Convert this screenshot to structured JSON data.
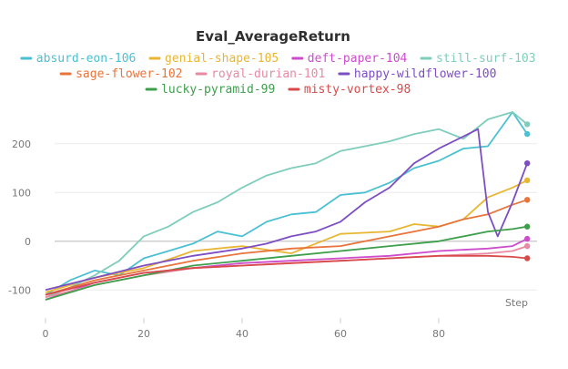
{
  "chart_data": {
    "type": "line",
    "title": "Eval_AverageReturn",
    "xlabel": "Step",
    "ylabel": "",
    "xlim": [
      0,
      100
    ],
    "ylim": [
      -150,
      280
    ],
    "xticks": [
      0,
      20,
      40,
      60,
      80
    ],
    "yticks": [
      -100,
      0,
      100,
      200
    ],
    "grid": "horizontal",
    "legend_position": "top",
    "series": [
      {
        "name": "absurd-eon-106",
        "color": "#4bc0d3",
        "values": [
          [
            0,
            -110
          ],
          [
            5,
            -80
          ],
          [
            10,
            -60
          ],
          [
            15,
            -70
          ],
          [
            20,
            -35
          ],
          [
            25,
            -20
          ],
          [
            30,
            -5
          ],
          [
            35,
            20
          ],
          [
            40,
            10
          ],
          [
            45,
            40
          ],
          [
            50,
            55
          ],
          [
            55,
            60
          ],
          [
            60,
            95
          ],
          [
            65,
            100
          ],
          [
            70,
            120
          ],
          [
            75,
            150
          ],
          [
            80,
            165
          ],
          [
            85,
            190
          ],
          [
            90,
            195
          ],
          [
            95,
            265
          ],
          [
            98,
            220
          ]
        ]
      },
      {
        "name": "genial-shape-105",
        "color": "#e8b632",
        "values": [
          [
            0,
            -105
          ],
          [
            10,
            -75
          ],
          [
            20,
            -55
          ],
          [
            30,
            -20
          ],
          [
            40,
            -10
          ],
          [
            50,
            -25
          ],
          [
            60,
            15
          ],
          [
            70,
            20
          ],
          [
            75,
            35
          ],
          [
            80,
            30
          ],
          [
            85,
            45
          ],
          [
            90,
            90
          ],
          [
            95,
            110
          ],
          [
            98,
            125
          ]
        ]
      },
      {
        "name": "deft-paper-104",
        "color": "#cc4ccc",
        "values": [
          [
            0,
            -120
          ],
          [
            10,
            -85
          ],
          [
            20,
            -65
          ],
          [
            30,
            -55
          ],
          [
            40,
            -45
          ],
          [
            50,
            -40
          ],
          [
            60,
            -35
          ],
          [
            70,
            -30
          ],
          [
            80,
            -20
          ],
          [
            90,
            -15
          ],
          [
            95,
            -10
          ],
          [
            98,
            5
          ]
        ]
      },
      {
        "name": "still-surf-103",
        "color": "#7fcdbb",
        "values": [
          [
            0,
            -115
          ],
          [
            5,
            -95
          ],
          [
            10,
            -70
          ],
          [
            15,
            -40
          ],
          [
            20,
            10
          ],
          [
            25,
            30
          ],
          [
            30,
            60
          ],
          [
            35,
            80
          ],
          [
            40,
            110
          ],
          [
            45,
            135
          ],
          [
            50,
            150
          ],
          [
            55,
            160
          ],
          [
            60,
            185
          ],
          [
            65,
            195
          ],
          [
            70,
            205
          ],
          [
            75,
            220
          ],
          [
            80,
            230
          ],
          [
            85,
            210
          ],
          [
            90,
            250
          ],
          [
            95,
            265
          ],
          [
            98,
            240
          ]
        ]
      },
      {
        "name": "sage-flower-102",
        "color": "#e8743b",
        "values": [
          [
            0,
            -110
          ],
          [
            10,
            -80
          ],
          [
            20,
            -60
          ],
          [
            30,
            -40
          ],
          [
            40,
            -25
          ],
          [
            50,
            -15
          ],
          [
            60,
            -10
          ],
          [
            65,
            0
          ],
          [
            70,
            10
          ],
          [
            75,
            20
          ],
          [
            80,
            30
          ],
          [
            85,
            45
          ],
          [
            90,
            55
          ],
          [
            95,
            75
          ],
          [
            98,
            85
          ]
        ]
      },
      {
        "name": "royal-durian-101",
        "color": "#e88aa3",
        "values": [
          [
            0,
            -115
          ],
          [
            10,
            -90
          ],
          [
            20,
            -70
          ],
          [
            30,
            -55
          ],
          [
            40,
            -50
          ],
          [
            50,
            -45
          ],
          [
            60,
            -40
          ],
          [
            70,
            -35
          ],
          [
            80,
            -30
          ],
          [
            90,
            -25
          ],
          [
            95,
            -20
          ],
          [
            98,
            -10
          ]
        ]
      },
      {
        "name": "happy-wildflower-100",
        "color": "#7d4ec3",
        "values": [
          [
            0,
            -100
          ],
          [
            10,
            -75
          ],
          [
            20,
            -50
          ],
          [
            30,
            -30
          ],
          [
            40,
            -15
          ],
          [
            45,
            -5
          ],
          [
            50,
            10
          ],
          [
            55,
            20
          ],
          [
            60,
            40
          ],
          [
            65,
            80
          ],
          [
            70,
            110
          ],
          [
            75,
            160
          ],
          [
            80,
            190
          ],
          [
            85,
            215
          ],
          [
            88,
            230
          ],
          [
            90,
            60
          ],
          [
            92,
            10
          ],
          [
            95,
            80
          ],
          [
            98,
            160
          ]
        ]
      },
      {
        "name": "lucky-pyramid-99",
        "color": "#3d9f4c",
        "values": [
          [
            0,
            -120
          ],
          [
            10,
            -90
          ],
          [
            20,
            -70
          ],
          [
            30,
            -50
          ],
          [
            40,
            -40
          ],
          [
            50,
            -30
          ],
          [
            60,
            -20
          ],
          [
            70,
            -10
          ],
          [
            80,
            0
          ],
          [
            90,
            20
          ],
          [
            95,
            25
          ],
          [
            98,
            30
          ]
        ]
      },
      {
        "name": "misty-vortex-98",
        "color": "#d84a4a",
        "values": [
          [
            0,
            -110
          ],
          [
            10,
            -85
          ],
          [
            20,
            -65
          ],
          [
            30,
            -55
          ],
          [
            40,
            -50
          ],
          [
            50,
            -45
          ],
          [
            60,
            -40
          ],
          [
            70,
            -35
          ],
          [
            80,
            -30
          ],
          [
            90,
            -30
          ],
          [
            95,
            -32
          ],
          [
            98,
            -35
          ]
        ]
      }
    ]
  }
}
